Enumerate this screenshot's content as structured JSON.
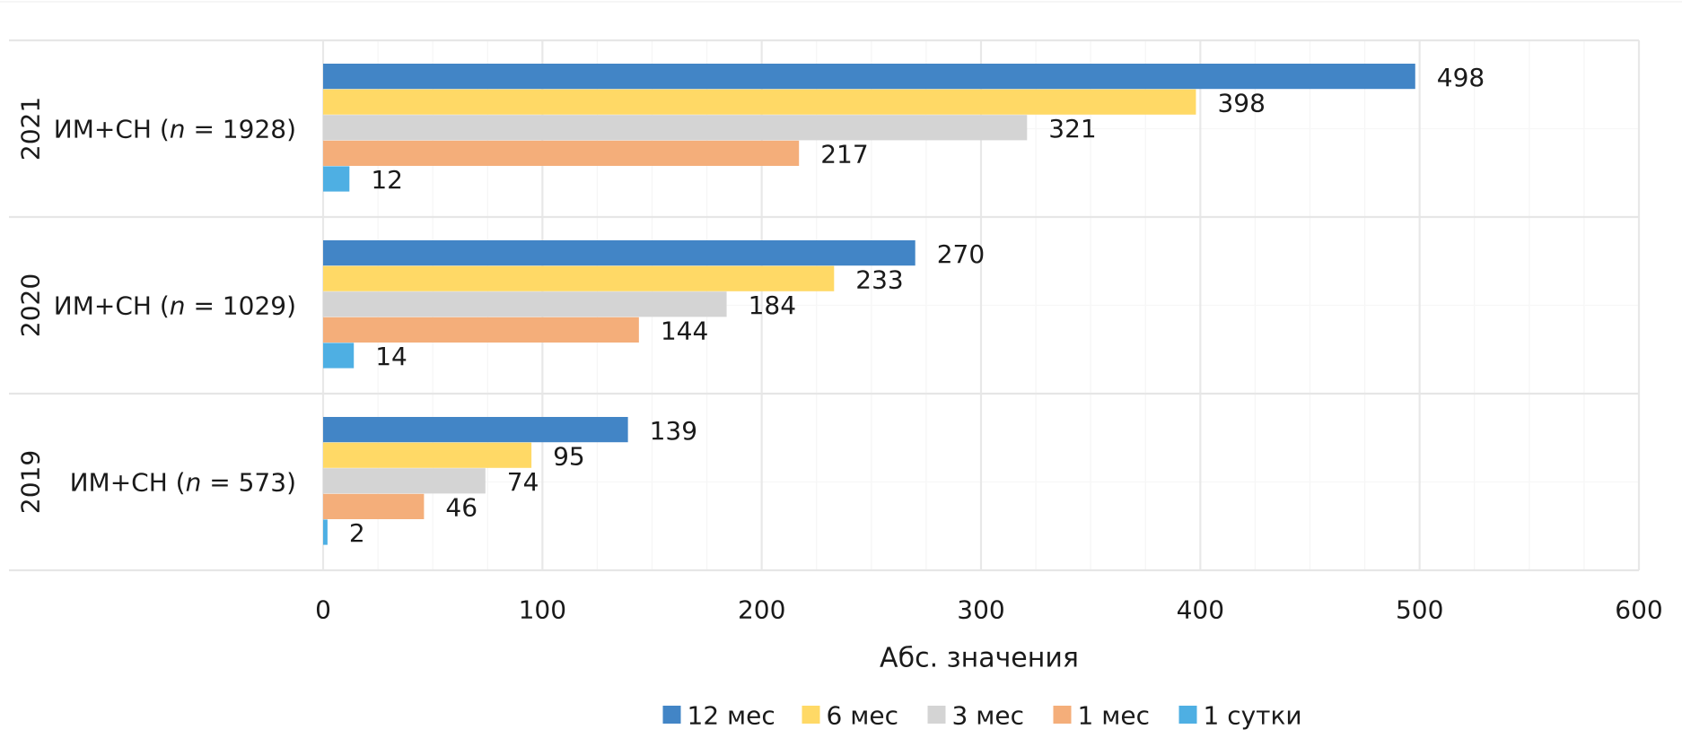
{
  "chart_data": {
    "type": "bar",
    "orientation": "horizontal",
    "groups": [
      {
        "year": "2021",
        "label_prefix": "ИМ+СН (",
        "n_var": "n",
        "label_suffix": " = 1928)"
      },
      {
        "year": "2020",
        "label_prefix": "ИМ+СН (",
        "n_var": "n",
        "label_suffix": " = 1029)"
      },
      {
        "year": "2019",
        "label_prefix": "ИМ+СН (",
        "n_var": "n",
        "label_suffix": " = 573)"
      }
    ],
    "series": [
      {
        "name": "12 мес",
        "color": "#4285c6",
        "values": [
          498,
          270,
          139
        ]
      },
      {
        "name": "6 мес",
        "color": "#ffd966",
        "values": [
          398,
          233,
          95
        ]
      },
      {
        "name": "3 мес",
        "color": "#d4d4d4",
        "values": [
          321,
          184,
          74
        ]
      },
      {
        "name": "1 мес",
        "color": "#f4ae7a",
        "values": [
          217,
          144,
          46
        ]
      },
      {
        "name": "1 сутки",
        "color": "#4eafe3",
        "values": [
          12,
          14,
          2
        ]
      }
    ],
    "xlabel": "Абс. значения",
    "xlim": [
      0,
      600
    ],
    "xticks": [
      0,
      100,
      200,
      300,
      400,
      500,
      600
    ],
    "grid": true,
    "legend_position": "bottom"
  }
}
